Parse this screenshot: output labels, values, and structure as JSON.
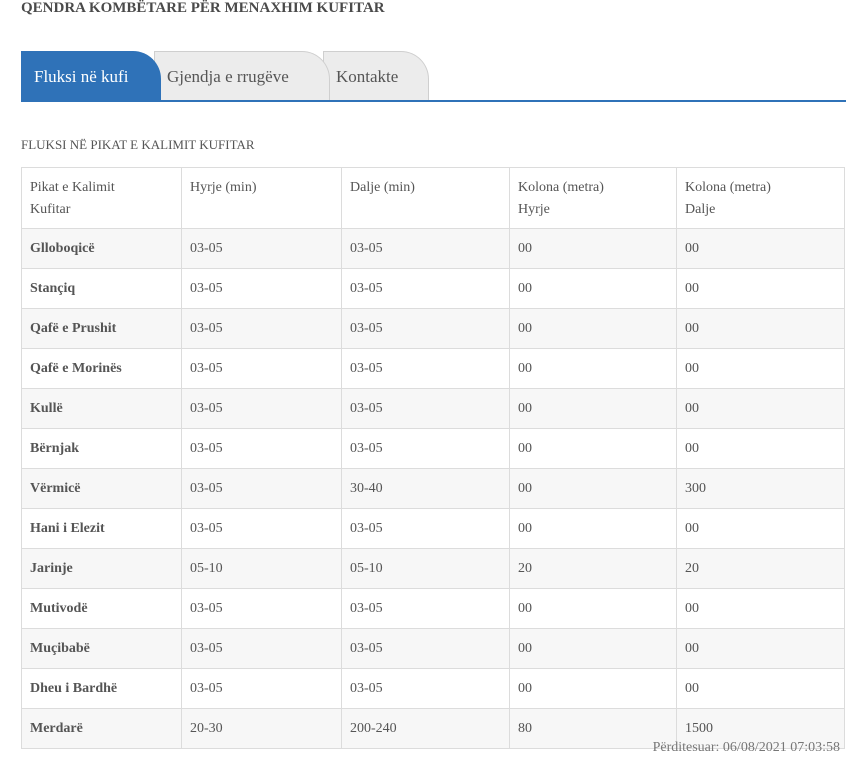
{
  "header": {
    "title": "QENDRA KOMBËTARE PËR MENAXHIM KUFITAR"
  },
  "tabs": [
    {
      "label": "Fluksi në kufi",
      "active": true
    },
    {
      "label": "Gjendja e rrugëve",
      "active": false
    },
    {
      "label": "Kontakte",
      "active": false
    }
  ],
  "section": {
    "title": "FLUKSI NË PIKAT E KALIMIT KUFITAR"
  },
  "table": {
    "headers": {
      "crossing_line1": "Pikat e Kalimit",
      "crossing_line2": "Kufitar",
      "entry": "Hyrje (min)",
      "exit": "Dalje (min)",
      "queue_entry_line1": "Kolona (metra)",
      "queue_entry_line2": "Hyrje",
      "queue_exit_line1": "Kolona (metra)",
      "queue_exit_line2": "Dalje"
    },
    "rows": [
      {
        "name": "Glloboqicë",
        "entry": "03-05",
        "exit": "03-05",
        "queue_in": "00",
        "queue_out": "00"
      },
      {
        "name": "Stançiq",
        "entry": "03-05",
        "exit": "03-05",
        "queue_in": "00",
        "queue_out": "00"
      },
      {
        "name": "Qafë e Prushit",
        "entry": "03-05",
        "exit": "03-05",
        "queue_in": "00",
        "queue_out": "00"
      },
      {
        "name": "Qafë e Morinës",
        "entry": "03-05",
        "exit": "03-05",
        "queue_in": "00",
        "queue_out": "00"
      },
      {
        "name": "Kullë",
        "entry": "03-05",
        "exit": "03-05",
        "queue_in": "00",
        "queue_out": "00"
      },
      {
        "name": "Bërnjak",
        "entry": "03-05",
        "exit": "03-05",
        "queue_in": "00",
        "queue_out": "00"
      },
      {
        "name": "Vërmicë",
        "entry": "03-05",
        "exit": "30-40",
        "queue_in": "00",
        "queue_out": "300"
      },
      {
        "name": "Hani i Elezit",
        "entry": "03-05",
        "exit": "03-05",
        "queue_in": "00",
        "queue_out": "00"
      },
      {
        "name": "Jarinje",
        "entry": "05-10",
        "exit": "05-10",
        "queue_in": "20",
        "queue_out": "20"
      },
      {
        "name": "Mutivodë",
        "entry": "03-05",
        "exit": "03-05",
        "queue_in": "00",
        "queue_out": "00"
      },
      {
        "name": "Muçibabë",
        "entry": "03-05",
        "exit": "03-05",
        "queue_in": "00",
        "queue_out": "00"
      },
      {
        "name": "Dheu i Bardhë",
        "entry": "03-05",
        "exit": "03-05",
        "queue_in": "00",
        "queue_out": "00"
      },
      {
        "name": "Merdarë",
        "entry": "20-30",
        "exit": "200-240",
        "queue_in": "80",
        "queue_out": "1500"
      }
    ]
  },
  "footer": {
    "updated": "Përditesuar: 06/08/2021 07:03:58"
  },
  "colors": {
    "accent": "#2f72b8",
    "tab_inactive": "#ececec",
    "row_alt": "#f7f7f7",
    "border": "#dcdcdc"
  }
}
